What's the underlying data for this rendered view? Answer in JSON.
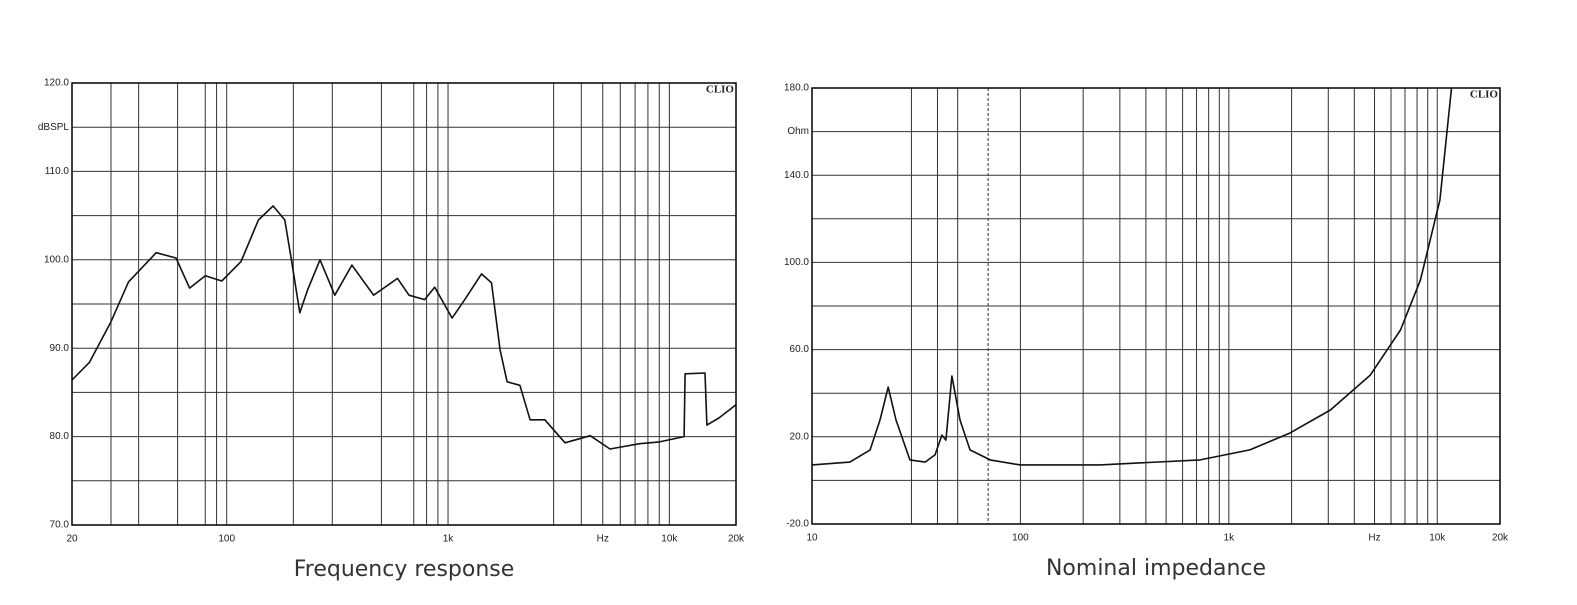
{
  "chart_data": [
    {
      "type": "line",
      "title": "Frequency response",
      "brand": "CLIO",
      "y_label": "dBSPL",
      "xscale": "log",
      "grid": true,
      "xlim": [
        20,
        20000
      ],
      "xticks": [
        20,
        100,
        {
          "value": 1000,
          "label": "1k"
        },
        {
          "value": 5000,
          "label": "Hz"
        },
        {
          "value": 10000,
          "label": "10k"
        },
        {
          "value": 20000,
          "label": "20k"
        }
      ],
      "minor_xticks": [
        30,
        40,
        60,
        80,
        90,
        200,
        300,
        500,
        700,
        800,
        900,
        3000,
        4000,
        6000,
        7000,
        8000,
        9000
      ],
      "ylim": [
        70,
        120
      ],
      "yticks": [
        {
          "value": 70,
          "label": "70.0"
        },
        {
          "value": 80,
          "label": "80.0"
        },
        {
          "value": 90,
          "label": "90.0"
        },
        {
          "value": 100,
          "label": "100.0"
        },
        {
          "value": 110,
          "label": "110.0"
        },
        {
          "value": 120,
          "label": "120.0"
        }
      ],
      "minor_yticks": [
        75,
        85,
        95,
        105,
        115
      ],
      "x": [
        20,
        24,
        30,
        36,
        48,
        59,
        68,
        80,
        95,
        116,
        139,
        162,
        183,
        196,
        214,
        232,
        264,
        308,
        368,
        461,
        591,
        666,
        784,
        870,
        1043,
        1190,
        1416,
        1571,
        1719,
        1848,
        2113,
        2348,
        2740,
        3375,
        4388,
        5393,
        7333,
        9016,
        11660,
        11780,
        14480,
        14780,
        16740,
        20000
      ],
      "series": [
        {
          "color": "#111111",
          "values": [
            86.4,
            88.4,
            93.0,
            97.5,
            100.8,
            100.2,
            96.8,
            98.2,
            97.6,
            99.8,
            104.5,
            106.1,
            104.5,
            100.0,
            94.0,
            96.6,
            100.0,
            96.0,
            99.4,
            96.0,
            97.9,
            96.0,
            95.5,
            96.9,
            93.4,
            95.5,
            98.4,
            97.4,
            89.8,
            86.2,
            85.8,
            81.9,
            81.9,
            79.3,
            80.1,
            78.6,
            79.2,
            79.4,
            80.0,
            87.1,
            87.2,
            81.3,
            82.1,
            83.6
          ]
        }
      ]
    },
    {
      "type": "line",
      "title": "Nominal impedance",
      "brand": "CLIO",
      "y_label": "Ohm",
      "xscale": "log",
      "grid": true,
      "cursor_x": 70,
      "xlim": [
        10,
        20000
      ],
      "xticks": [
        10,
        100,
        {
          "value": 1000,
          "label": "1k"
        },
        {
          "value": 5000,
          "label": "Hz"
        },
        {
          "value": 10000,
          "label": "10k"
        },
        {
          "value": 20000,
          "label": "20k"
        }
      ],
      "minor_xticks": [
        30,
        40,
        50,
        200,
        300,
        400,
        500,
        600,
        700,
        800,
        900,
        2000,
        3000,
        4000,
        6000,
        7000,
        8000,
        9000
      ],
      "ylim": [
        -20,
        180
      ],
      "yticks": [
        {
          "value": -20,
          "label": "-20.0"
        },
        {
          "value": 20,
          "label": "20.0"
        },
        {
          "value": 60,
          "label": "60.0"
        },
        {
          "value": 100,
          "label": "100.0"
        },
        {
          "value": 140,
          "label": "140.0"
        },
        {
          "value": 180,
          "label": "180.0"
        }
      ],
      "minor_yticks": [
        0,
        40,
        80,
        120,
        160
      ],
      "x": [
        10,
        15.2,
        19.0,
        21.2,
        23.2,
        25.3,
        29.5,
        34.9,
        38.9,
        42.0,
        43.9,
        46.9,
        51.3,
        57.3,
        71.5,
        99.5,
        240,
        728,
        1260,
        1960,
        3070,
        4770,
        6660,
        8300,
        10300,
        11700
      ],
      "series": [
        {
          "color": "#111111",
          "values": [
            7.1,
            8.4,
            14.0,
            27.7,
            42.8,
            27.7,
            9.4,
            8.4,
            11.7,
            20.8,
            18.5,
            47.9,
            27.7,
            14.0,
            9.4,
            7.1,
            7.1,
            9.4,
            14.0,
            21.7,
            32.3,
            48.3,
            69.0,
            91.9,
            128.6,
            180
          ]
        }
      ]
    }
  ]
}
